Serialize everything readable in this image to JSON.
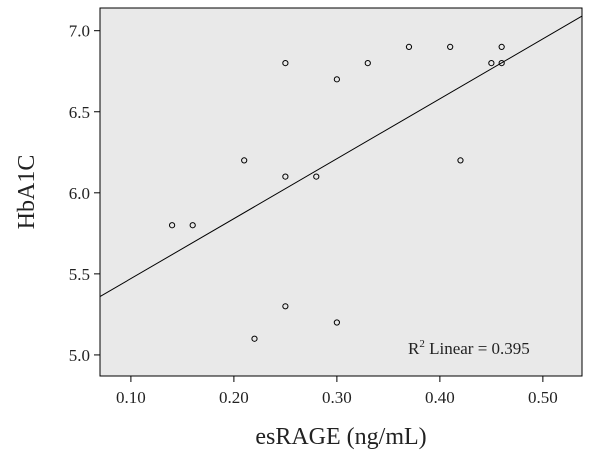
{
  "chart_data": {
    "type": "scatter",
    "x_label": "esRAGE (ng/mL)",
    "y_label": "HbA1C",
    "annotation": {
      "base": "R",
      "sup": "2",
      "rest": " Linear = 0.395"
    },
    "x": [
      0.14,
      0.16,
      0.21,
      0.22,
      0.25,
      0.25,
      0.25,
      0.28,
      0.3,
      0.3,
      0.33,
      0.37,
      0.41,
      0.42,
      0.45,
      0.46,
      0.46
    ],
    "values": [
      5.8,
      5.8,
      6.2,
      5.1,
      6.8,
      6.1,
      5.3,
      6.1,
      6.7,
      5.2,
      6.8,
      6.9,
      6.9,
      6.2,
      6.8,
      6.9,
      6.8
    ],
    "fit_line": {
      "x": [
        0.07,
        0.538
      ],
      "y": [
        5.36,
        7.09
      ]
    },
    "xlim": [
      0.07,
      0.538
    ],
    "ylim": [
      4.87,
      7.14
    ],
    "xticks": [
      {
        "value": 0.1,
        "label": "0.10"
      },
      {
        "value": 0.2,
        "label": "0.20"
      },
      {
        "value": 0.3,
        "label": "0.30"
      },
      {
        "value": 0.4,
        "label": "0.40"
      },
      {
        "value": 0.5,
        "label": "0.50"
      }
    ],
    "yticks": [
      {
        "value": 5,
        "label": "5.0"
      },
      {
        "value": 5.5,
        "label": "5.5"
      },
      {
        "value": 6,
        "label": "6.0"
      },
      {
        "value": 6.5,
        "label": "6.5"
      },
      {
        "value": 7,
        "label": "7.0"
      }
    ],
    "color": "#000000",
    "background": "#e9e9e9"
  }
}
